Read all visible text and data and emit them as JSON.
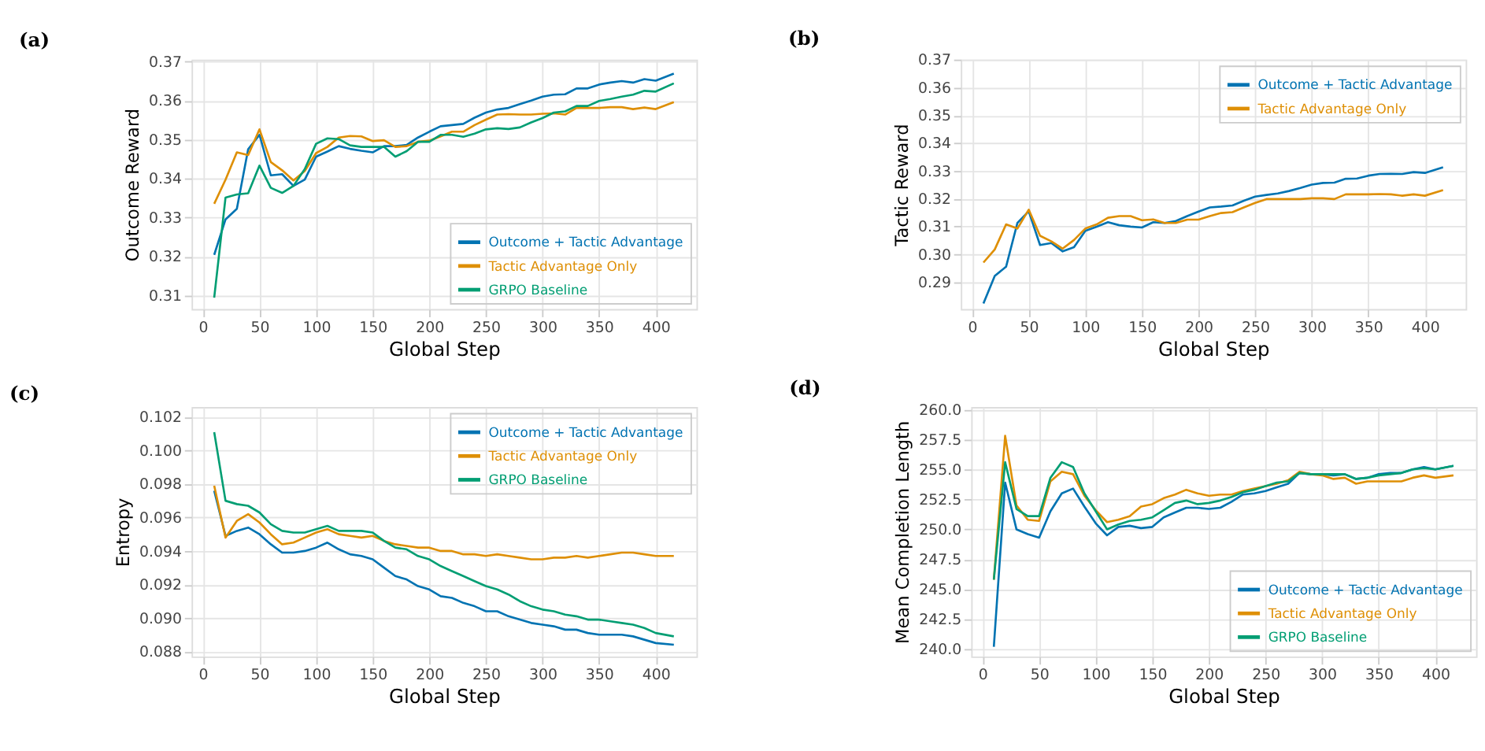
{
  "chart_data": [
    {
      "type": "line",
      "title": "(a)",
      "xlabel": "Global Step",
      "ylabel": "Outcome Reward",
      "grid": true,
      "legend": "bottom right",
      "x": [
        10,
        20,
        30,
        40,
        50,
        60,
        70,
        80,
        90,
        100,
        110,
        120,
        130,
        140,
        150,
        160,
        170,
        180,
        190,
        200,
        210,
        220,
        230,
        240,
        250,
        260,
        270,
        280,
        290,
        300,
        310,
        320,
        330,
        340,
        350,
        360,
        370,
        380,
        390,
        400,
        416
      ],
      "xlim": [
        -10,
        436
      ],
      "xticks": [
        0,
        50,
        100,
        150,
        200,
        250,
        300,
        350,
        400
      ],
      "ylim": [
        0.3065,
        0.3705
      ],
      "yticks": [
        0.31,
        0.32,
        0.33,
        0.34,
        0.35,
        0.36,
        0.37
      ],
      "series": [
        {
          "name": "Outcome + Tactic Advantage",
          "color": "#0173b2",
          "values": [
            0.3204,
            0.3295,
            0.3322,
            0.3475,
            0.3512,
            0.3408,
            0.3411,
            0.3381,
            0.3397,
            0.3456,
            0.3469,
            0.3483,
            0.3476,
            0.3471,
            0.3467,
            0.3483,
            0.3483,
            0.3486,
            0.3505,
            0.352,
            0.3534,
            0.3537,
            0.354,
            0.3556,
            0.3569,
            0.3577,
            0.3581,
            0.3591,
            0.36,
            0.361,
            0.3615,
            0.3616,
            0.3631,
            0.3631,
            0.3641,
            0.3646,
            0.365,
            0.3646,
            0.3655,
            0.3651,
            0.3669
          ]
        },
        {
          "name": "Tactic Advantage Only",
          "color": "#de8f05",
          "values": [
            0.3335,
            0.3397,
            0.3467,
            0.346,
            0.3526,
            0.3442,
            0.3421,
            0.3395,
            0.3419,
            0.3465,
            0.3481,
            0.3505,
            0.3509,
            0.3508,
            0.3496,
            0.3498,
            0.3481,
            0.3483,
            0.3494,
            0.3497,
            0.3508,
            0.352,
            0.352,
            0.3537,
            0.3551,
            0.3564,
            0.3565,
            0.3564,
            0.3564,
            0.3566,
            0.3567,
            0.3564,
            0.3581,
            0.3581,
            0.3581,
            0.3583,
            0.3583,
            0.3578,
            0.3582,
            0.3578,
            0.3596
          ]
        },
        {
          "name": "GRPO Baseline",
          "color": "#029e73",
          "values": [
            0.3094,
            0.3351,
            0.3359,
            0.3362,
            0.3433,
            0.3376,
            0.3363,
            0.3381,
            0.3424,
            0.3489,
            0.3503,
            0.3501,
            0.3485,
            0.3481,
            0.3481,
            0.3481,
            0.3456,
            0.347,
            0.3494,
            0.3494,
            0.3512,
            0.3512,
            0.3507,
            0.3515,
            0.3526,
            0.3529,
            0.3527,
            0.3531,
            0.3544,
            0.3555,
            0.3569,
            0.3572,
            0.3586,
            0.3586,
            0.3599,
            0.3604,
            0.361,
            0.3615,
            0.3625,
            0.3623,
            0.3644
          ]
        }
      ]
    },
    {
      "type": "line",
      "title": "(b)",
      "xlabel": "Global Step",
      "ylabel": "Tactic Reward",
      "grid": true,
      "legend": "top right",
      "x": [
        10,
        20,
        30,
        40,
        50,
        60,
        70,
        80,
        90,
        100,
        110,
        120,
        130,
        140,
        150,
        160,
        170,
        180,
        190,
        200,
        210,
        220,
        230,
        240,
        250,
        260,
        270,
        280,
        290,
        300,
        310,
        320,
        330,
        340,
        350,
        360,
        370,
        380,
        390,
        400,
        416
      ],
      "xlim": [
        -10,
        436
      ],
      "xticks": [
        0,
        50,
        100,
        150,
        200,
        250,
        300,
        350,
        400
      ],
      "ylim": [
        0.2804,
        0.37
      ],
      "yticks": [
        0.29,
        {
          "value": 0.3,
          "label": "0.30"
        },
        0.31,
        0.32,
        0.33,
        0.34,
        0.35,
        0.36,
        0.37
      ],
      "series": [
        {
          "name": "Outcome + Tactic Advantage",
          "color": "#0173b2",
          "values": [
            0.2824,
            0.2923,
            0.2956,
            0.3113,
            0.3155,
            0.3034,
            0.3041,
            0.3011,
            0.3026,
            0.3085,
            0.31,
            0.3116,
            0.3105,
            0.31,
            0.3097,
            0.3116,
            0.3113,
            0.312,
            0.3138,
            0.3154,
            0.3169,
            0.3172,
            0.3176,
            0.3193,
            0.3208,
            0.3214,
            0.3219,
            0.3228,
            0.3239,
            0.3251,
            0.3257,
            0.3258,
            0.3272,
            0.3273,
            0.3283,
            0.3289,
            0.329,
            0.3289,
            0.3296,
            0.3293,
            0.3313
          ]
        },
        {
          "name": "Tactic Advantage Only",
          "color": "#de8f05",
          "values": [
            0.2971,
            0.3018,
            0.3108,
            0.3093,
            0.3161,
            0.3067,
            0.3047,
            0.3021,
            0.3052,
            0.3093,
            0.3108,
            0.3132,
            0.3138,
            0.3138,
            0.3123,
            0.3126,
            0.3113,
            0.3113,
            0.3125,
            0.3125,
            0.3138,
            0.3149,
            0.3152,
            0.3169,
            0.3185,
            0.3199,
            0.3199,
            0.3199,
            0.3199,
            0.3202,
            0.3202,
            0.3199,
            0.3216,
            0.3216,
            0.3216,
            0.3217,
            0.3216,
            0.3211,
            0.3216,
            0.3211,
            0.3231
          ]
        }
      ]
    },
    {
      "type": "line",
      "title": "(c)",
      "xlabel": "Global Step",
      "ylabel": "Entropy",
      "grid": true,
      "legend": "top right",
      "x": [
        10,
        20,
        30,
        40,
        50,
        60,
        70,
        80,
        90,
        100,
        110,
        120,
        130,
        140,
        150,
        160,
        170,
        180,
        190,
        200,
        210,
        220,
        230,
        240,
        250,
        260,
        270,
        280,
        290,
        300,
        310,
        320,
        330,
        340,
        350,
        360,
        370,
        380,
        390,
        400,
        416
      ],
      "xlim": [
        -10,
        436
      ],
      "xticks": [
        0,
        50,
        100,
        150,
        200,
        250,
        300,
        350,
        400
      ],
      "ylim": [
        0.0877,
        0.1026
      ],
      "yticks": [
        0.088,
        {
          "value": 0.09,
          "label": "0.090"
        },
        0.092,
        0.094,
        0.096,
        0.098,
        {
          "value": 0.1,
          "label": "0.100"
        },
        0.102
      ],
      "series": [
        {
          "name": "Outcome + Tactic Advantage",
          "color": "#0173b2",
          "values": [
            0.0976,
            0.0949,
            0.0952,
            0.0954,
            0.095,
            0.0944,
            0.0939,
            0.0939,
            0.094,
            0.0942,
            0.0945,
            0.0941,
            0.0938,
            0.0937,
            0.0935,
            0.093,
            0.0925,
            0.0923,
            0.0919,
            0.0917,
            0.0913,
            0.0912,
            0.0909,
            0.0907,
            0.0904,
            0.0904,
            0.0901,
            0.0899,
            0.0897,
            0.0896,
            0.0895,
            0.0893,
            0.0893,
            0.0891,
            0.089,
            0.089,
            0.089,
            0.0889,
            0.0887,
            0.0885,
            0.0884
          ]
        },
        {
          "name": "Tactic Advantage Only",
          "color": "#de8f05",
          "values": [
            0.0979,
            0.0948,
            0.0958,
            0.0962,
            0.0957,
            0.095,
            0.0944,
            0.0945,
            0.0948,
            0.0951,
            0.0953,
            0.095,
            0.0949,
            0.0948,
            0.0949,
            0.0946,
            0.0944,
            0.0943,
            0.0942,
            0.0942,
            0.094,
            0.094,
            0.0938,
            0.0938,
            0.0937,
            0.0938,
            0.0937,
            0.0936,
            0.0935,
            0.0935,
            0.0936,
            0.0936,
            0.0937,
            0.0936,
            0.0937,
            0.0938,
            0.0939,
            0.0939,
            0.0938,
            0.0937,
            0.0937
          ]
        },
        {
          "name": "GRPO Baseline",
          "color": "#029e73",
          "values": [
            0.1011,
            0.097,
            0.0968,
            0.0967,
            0.0963,
            0.0956,
            0.0952,
            0.0951,
            0.0951,
            0.0953,
            0.0955,
            0.0952,
            0.0952,
            0.0952,
            0.0951,
            0.0946,
            0.0942,
            0.0941,
            0.0937,
            0.0935,
            0.0931,
            0.0928,
            0.0925,
            0.0922,
            0.0919,
            0.0917,
            0.0914,
            0.091,
            0.0907,
            0.0905,
            0.0904,
            0.0902,
            0.0901,
            0.0899,
            0.0899,
            0.0898,
            0.0897,
            0.0896,
            0.0894,
            0.0891,
            0.0889
          ]
        }
      ]
    },
    {
      "type": "line",
      "title": "(d)",
      "xlabel": "Global Step",
      "ylabel": "Mean Completion Length",
      "grid": true,
      "legend": "bottom right",
      "x": [
        10,
        20,
        30,
        40,
        50,
        60,
        70,
        80,
        90,
        100,
        110,
        120,
        130,
        140,
        150,
        160,
        170,
        180,
        190,
        200,
        210,
        220,
        230,
        240,
        250,
        260,
        270,
        280,
        290,
        300,
        310,
        320,
        330,
        340,
        350,
        360,
        370,
        380,
        390,
        400,
        416
      ],
      "xlim": [
        -10,
        436
      ],
      "xticks": [
        0,
        50,
        100,
        150,
        200,
        250,
        300,
        350,
        400
      ],
      "ylim": [
        239.4,
        260.2
      ],
      "yticks": [
        {
          "value": 240,
          "label": "240.0"
        },
        242.5,
        {
          "value": 245,
          "label": "245.0"
        },
        247.5,
        {
          "value": 250,
          "label": "250.0"
        },
        252.5,
        {
          "value": 255,
          "label": "255.0"
        },
        257.5,
        {
          "value": 260,
          "label": "260.0"
        }
      ],
      "series": [
        {
          "name": "Outcome + Tactic Advantage",
          "color": "#0173b2",
          "values": [
            240.2,
            253.9,
            250.0,
            249.6,
            249.3,
            251.5,
            253.0,
            253.4,
            251.9,
            250.5,
            249.5,
            250.2,
            250.3,
            250.1,
            250.2,
            251.0,
            251.4,
            251.8,
            251.8,
            251.7,
            251.8,
            252.3,
            252.9,
            253.0,
            253.2,
            253.5,
            253.8,
            254.7,
            254.6,
            254.6,
            254.5,
            254.6,
            254.2,
            254.3,
            254.6,
            254.7,
            254.7,
            255.0,
            255.2,
            255.0,
            255.3
          ]
        },
        {
          "name": "Tactic Advantage Only",
          "color": "#de8f05",
          "values": [
            245.8,
            257.8,
            252.0,
            250.8,
            250.7,
            254.0,
            254.8,
            254.6,
            252.8,
            251.6,
            250.6,
            250.8,
            251.1,
            251.9,
            252.1,
            252.6,
            252.9,
            253.3,
            253.0,
            252.8,
            252.9,
            252.9,
            253.2,
            253.4,
            253.6,
            253.8,
            254.1,
            254.8,
            254.6,
            254.5,
            254.2,
            254.3,
            253.8,
            254.0,
            254.0,
            254.0,
            254.0,
            254.3,
            254.5,
            254.3,
            254.5
          ]
        },
        {
          "name": "GRPO Baseline",
          "color": "#029e73",
          "values": [
            245.8,
            255.6,
            251.7,
            251.1,
            251.1,
            254.3,
            255.6,
            255.2,
            253.0,
            251.5,
            250.0,
            250.4,
            250.7,
            250.8,
            251.0,
            251.6,
            252.2,
            252.4,
            252.1,
            252.2,
            252.4,
            252.7,
            253.1,
            253.3,
            253.6,
            253.9,
            254.0,
            254.7,
            254.6,
            254.6,
            254.6,
            254.6,
            254.2,
            254.3,
            254.5,
            254.6,
            254.7,
            255.0,
            255.1,
            255.0,
            255.3
          ]
        }
      ]
    }
  ]
}
